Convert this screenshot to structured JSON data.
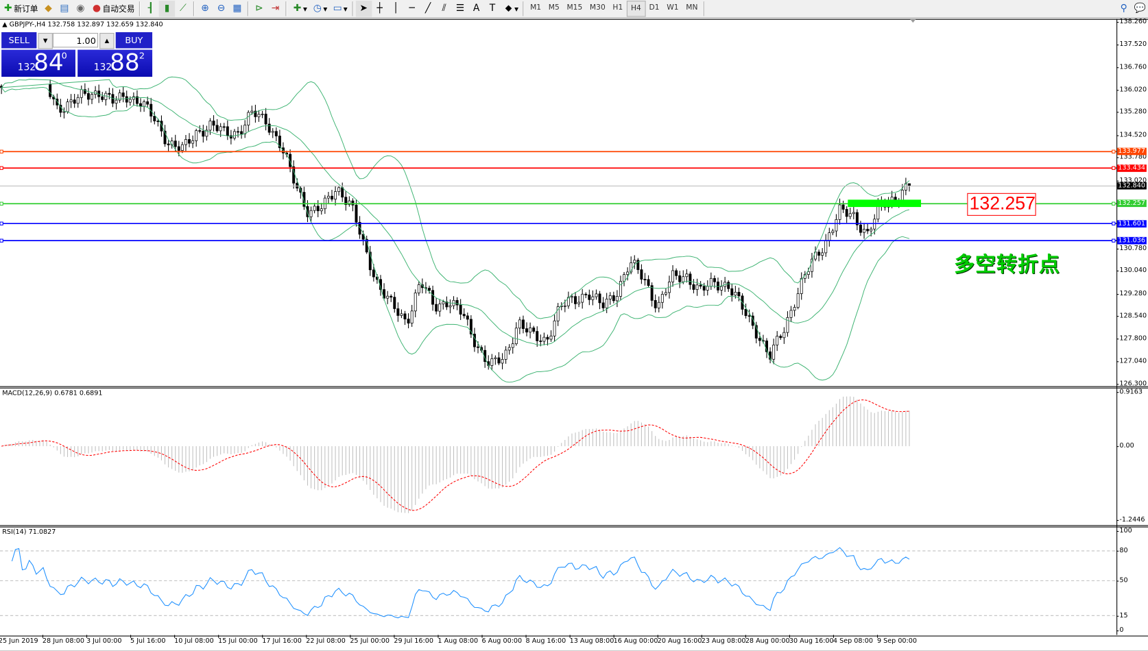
{
  "toolbar": {
    "new_order": "新订单",
    "auto_trading": "自动交易",
    "icons": [
      "new-order-icon",
      "strategy-tester-icon",
      "market-watch-icon",
      "signal-icon",
      "auto-trading-icon",
      "bar-chart-icon",
      "candlestick-icon",
      "line-chart-icon",
      "zoom-in-icon",
      "zoom-out-icon",
      "tile-windows-icon",
      "auto-scroll-icon",
      "chart-shift-icon",
      "indicators-icon",
      "periods-icon",
      "templates-icon",
      "cursor-icon",
      "crosshair-icon",
      "vertical-line-icon",
      "horizontal-line-icon",
      "trendline-icon",
      "equidistant-channel-icon",
      "fibonacci-icon",
      "text-icon",
      "text-label-icon",
      "arrows-icon"
    ],
    "timeframes": [
      "M1",
      "M5",
      "M15",
      "M30",
      "H1",
      "H4",
      "D1",
      "W1",
      "MN"
    ],
    "active_timeframe": "H4"
  },
  "chart": {
    "header": "GBPJPY-,H4  132.758 132.897 132.659 132.840",
    "one_click": {
      "sell_label": "SELL",
      "buy_label": "BUY",
      "lot": "1.00",
      "sell_prefix": "132",
      "sell_big": "84",
      "sell_sup": "0",
      "buy_prefix": "132",
      "buy_big": "88",
      "buy_sup": "2"
    },
    "annotation_price": "132.257",
    "annotation_text": "多空转折点",
    "colors": {
      "bull_bear": "#000000",
      "bollinger": "#3cb371",
      "macd_hist": "#c0c0c0",
      "macd_signal": "#ff0000",
      "rsi": "#1e90ff",
      "green_zone": "#00ff00",
      "annotation_text": "#00cc00"
    }
  },
  "chart_data": [
    {
      "type": "candlestick",
      "symbol": "GBPJPY-",
      "timeframe": "H4",
      "ylim": [
        126.3,
        138.26
      ],
      "y_ticks": [
        "138.260",
        "137.520",
        "136.760",
        "136.020",
        "135.280",
        "134.520",
        "133.780",
        "133.020",
        "130.780",
        "130.040",
        "129.280",
        "128.540",
        "127.800",
        "127.040",
        "126.300"
      ],
      "x_ticks": [
        "25 Jun 2019",
        "28 Jun 08:00",
        "3 Jul 00:00",
        "5 Jul 16:00",
        "10 Jul 08:00",
        "15 Jul 00:00",
        "17 Jul 16:00",
        "22 Jul 08:00",
        "25 Jul 00:00",
        "29 Jul 16:00",
        "1 Aug 08:00",
        "6 Aug 00:00",
        "8 Aug 16:00",
        "13 Aug 08:00",
        "16 Aug 00:00",
        "20 Aug 16:00",
        "23 Aug 08:00",
        "28 Aug 00:00",
        "30 Aug 16:00",
        "4 Sep 08:00",
        "9 Sep 00:00"
      ],
      "approx_close_path": [
        136.09,
        136.38,
        136.57,
        136.33,
        135.42,
        135.6,
        135.84,
        135.96,
        135.6,
        135.84,
        135.6,
        135.0,
        134.27,
        134.03,
        134.64,
        134.83,
        134.59,
        134.64,
        135.24,
        135.0,
        134.15,
        132.95,
        131.98,
        132.1,
        132.82,
        132.22,
        130.77,
        129.56,
        128.84,
        128.36,
        129.68,
        128.84,
        129.08,
        128.6,
        127.63,
        126.9,
        127.15,
        128.36,
        127.87,
        127.75,
        128.84,
        129.08,
        129.32,
        128.84,
        129.32,
        130.29,
        129.8,
        128.84,
        129.8,
        129.92,
        129.32,
        129.68,
        129.56,
        128.84,
        128.11,
        127.15,
        128.11,
        129.32,
        130.29,
        131.01,
        131.98,
        131.86,
        131.25,
        132.22,
        132.46,
        132.84
      ],
      "last_bar": {
        "open": 132.758,
        "high": 132.897,
        "low": 132.659,
        "close": 132.84
      },
      "overlay": "Bollinger Bands",
      "horizontal_lines": [
        {
          "price": "133.977",
          "color": "#ff4500"
        },
        {
          "price": "133.434",
          "color": "#ff0000"
        },
        {
          "price": "132.840",
          "color": "#000000",
          "kind": "bid"
        },
        {
          "price": "132.257",
          "color": "#32cd32"
        },
        {
          "price": "131.601",
          "color": "#0000ff"
        },
        {
          "price": "131.036",
          "color": "#0000ff"
        }
      ]
    },
    {
      "type": "bar+line",
      "label": "MACD(12,26,9) 0.6781 0.6891",
      "ylim": [
        -1.2446,
        0.9163
      ],
      "y_ticks": [
        "0.9163",
        "0.00",
        "-1.2446"
      ]
    },
    {
      "type": "line",
      "label": "RSI(14) 71.0827",
      "ylim": [
        0,
        100
      ],
      "y_ticks": [
        "100",
        "80",
        "50",
        "15",
        "0"
      ],
      "levels": [
        80,
        50,
        15
      ]
    }
  ]
}
